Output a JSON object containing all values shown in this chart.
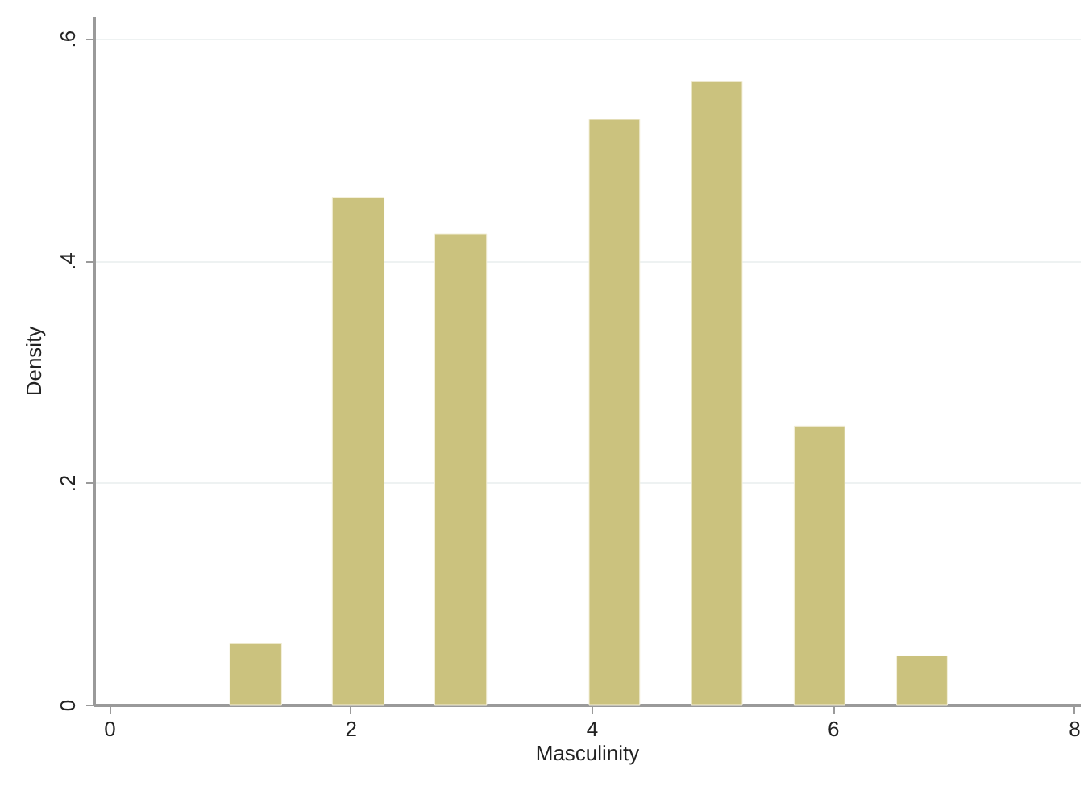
{
  "chart_data": {
    "type": "histogram",
    "xlabel": "Masculinity",
    "ylabel": "Density",
    "bins": [
      1.0,
      1.43,
      1.85,
      2.28,
      2.7,
      3.13,
      3.98,
      4.4,
      4.83,
      5.25,
      5.68,
      6.1,
      6.53,
      6.95
    ],
    "values": [
      0.055,
      null,
      0.457,
      null,
      0.424,
      null,
      0.527,
      null,
      0.561,
      null,
      0.251,
      null,
      0.044
    ],
    "color": "#cbc27e",
    "xlim": [
      -0.13,
      8.05
    ],
    "xticks": [
      0,
      2,
      4,
      6,
      8
    ],
    "ylim": [
      0,
      0.62
    ],
    "yticks": [
      0,
      {
        "value": 0.2,
        "label": ".2"
      },
      {
        "value": 0.4,
        "label": ".4"
      },
      {
        "value": 0.6,
        "label": ".6"
      }
    ],
    "grid": "y"
  }
}
